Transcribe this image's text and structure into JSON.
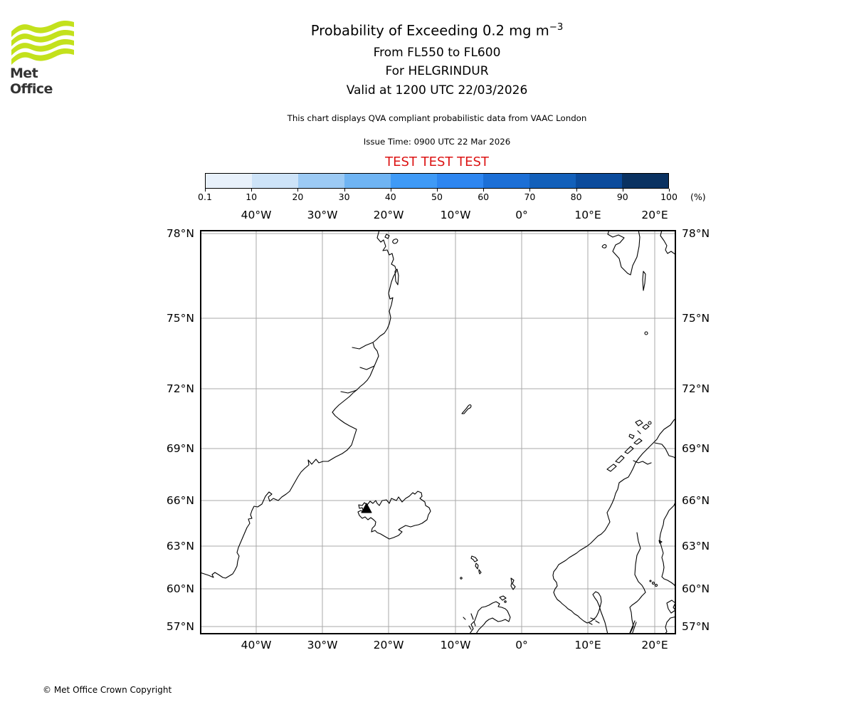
{
  "logo": {
    "text": "Met Office",
    "green": "#c3e11c"
  },
  "title": {
    "main": "Probability of Exceeding 0.2 mg m",
    "sup": "−3",
    "line2": "From FL550 to FL600",
    "line3": "For HELGRINDUR",
    "line4": "Valid at 1200 UTC 22/03/2026"
  },
  "notes": {
    "compliance": "This chart displays QVA compliant probabilistic data from VAAC London",
    "issue": "Issue Time: 0900 UTC 22 Mar 2026",
    "test": "TEST TEST TEST",
    "test_color": "#dc1414"
  },
  "colorbar": {
    "unit": "(%)",
    "tick_labels": [
      "0.1",
      "10",
      "20",
      "30",
      "40",
      "50",
      "60",
      "70",
      "80",
      "90",
      "100"
    ],
    "segment_colors": [
      "#e8f1fb",
      "#cde3f8",
      "#9ccaf4",
      "#6fb4f3",
      "#3f9af6",
      "#2e86f0",
      "#1c6fd6",
      "#1360ba",
      "#0b4b9c",
      "#0a3261"
    ]
  },
  "map": {
    "lon_labels": [
      "40°W",
      "30°W",
      "20°W",
      "10°W",
      "0°",
      "10°E",
      "20°E"
    ],
    "lat_labels": [
      "78°N",
      "75°N",
      "72°N",
      "69°N",
      "66°N",
      "63°N",
      "60°N",
      "57°N"
    ],
    "gridline_color": "#a9a9a9",
    "coastline_color": "#000000",
    "volcano_marker": "black triangle on Snaefellsnes peninsula, west Iceland"
  },
  "footer": {
    "copyright": "© Met Office Crown Copyright"
  },
  "chart_data": {
    "type": "geographic_probability_chart",
    "projection": "mercator",
    "lon_range_deg": [
      -48.5,
      23.4
    ],
    "lat_range_deg": [
      56.4,
      78.1
    ],
    "grid_lon_deg": [
      -40,
      -30,
      -20,
      -10,
      0,
      10,
      20
    ],
    "grid_lat_deg": [
      78,
      75,
      72,
      69,
      66,
      63,
      60,
      57
    ],
    "colorbar_percent_bounds": [
      0.1,
      10,
      20,
      30,
      40,
      50,
      60,
      70,
      80,
      90,
      100
    ],
    "probability_field": "no shaded exceedance areas visible (field empty)",
    "regions_shown": [
      "East Greenland",
      "Iceland",
      "Jan Mayen",
      "Svalbard",
      "Bear Island",
      "Faroe Islands",
      "Shetland",
      "Orkney",
      "Scotland",
      "Norway",
      "Sweden",
      "Gulf of Bothnia",
      "Gotland",
      "Öland",
      "Denmark (Skagen)"
    ]
  }
}
